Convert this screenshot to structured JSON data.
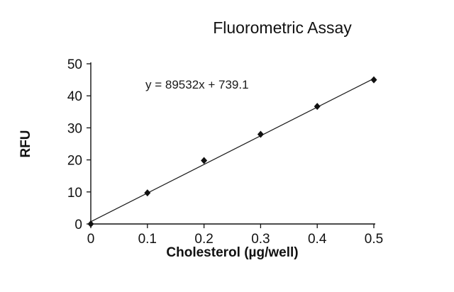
{
  "chart_data": {
    "type": "scatter",
    "title": "Fluorometric Assay",
    "xlabel": "Cholesterol (µg/well)",
    "ylabel": "RFU",
    "xlim": [
      0,
      0.5
    ],
    "ylim": [
      0,
      50
    ],
    "x_ticks": [
      "0",
      "0.1",
      "0.2",
      "0.3",
      "0.4",
      "0.5"
    ],
    "y_ticks": [
      "0",
      "10",
      "20",
      "30",
      "40",
      "50"
    ],
    "x": [
      0,
      0.1,
      0.2,
      0.3,
      0.4,
      0.5
    ],
    "y": [
      0,
      9.7,
      19.8,
      28,
      36.7,
      45
    ],
    "equation": "y = 89532x  + 739.1",
    "trendline": {
      "x1": 0,
      "y1": 0.7,
      "x2": 0.5,
      "y2": 45.4
    },
    "marker": "diamond",
    "axis_color": "#111111",
    "line_color": "#1a1a1a",
    "marker_color": "#111111",
    "grid": false,
    "legend": "none"
  }
}
